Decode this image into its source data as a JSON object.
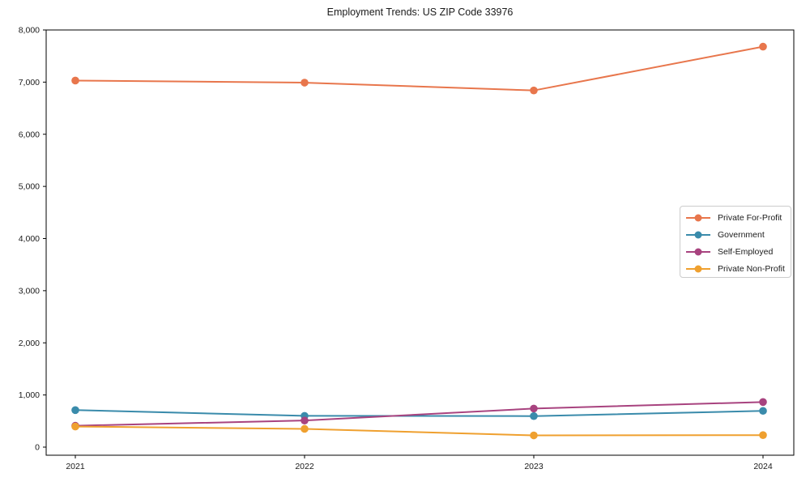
{
  "chart_data": {
    "type": "line",
    "title": "Employment Trends: US ZIP Code 33976",
    "x": [
      "2021",
      "2022",
      "2023",
      "2024"
    ],
    "series": [
      {
        "name": "Private For-Profit",
        "color": "#e8764c",
        "values": [
          7030,
          6990,
          6840,
          7680
        ]
      },
      {
        "name": "Government",
        "color": "#3a8bab",
        "values": [
          710,
          600,
          595,
          695
        ]
      },
      {
        "name": "Self-Employed",
        "color": "#a8437f",
        "values": [
          410,
          510,
          740,
          865
        ]
      },
      {
        "name": "Private Non-Profit",
        "color": "#efa02f",
        "values": [
          395,
          350,
          225,
          230
        ]
      }
    ],
    "xlabel": "",
    "ylabel": "",
    "ylim": [
      0,
      8000
    ],
    "yticks": [
      0,
      1000,
      2000,
      3000,
      4000,
      5000,
      6000,
      7000,
      8000
    ],
    "ytick_labels": [
      "0",
      "1,000",
      "2,000",
      "3,000",
      "4,000",
      "5,000",
      "6,000",
      "7,000",
      "8,000"
    ],
    "xtick_labels": [
      "2021",
      "2022",
      "2023",
      "2024"
    ],
    "grid": false,
    "legend_position": "center-right",
    "marker": "circle",
    "axis_color": "#000000"
  }
}
